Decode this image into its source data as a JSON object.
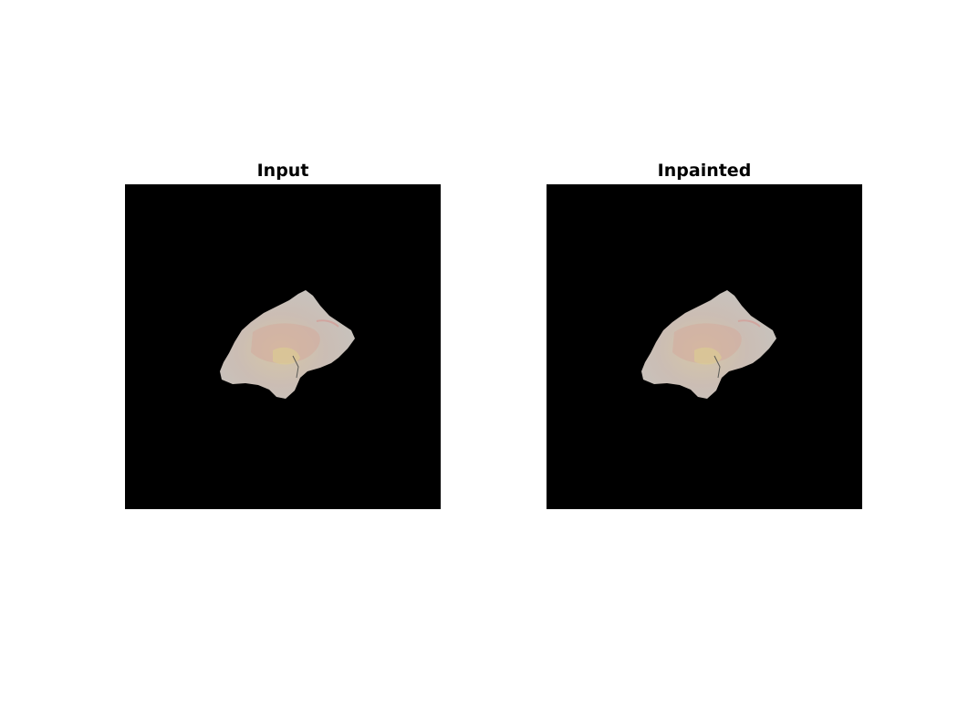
{
  "panels": [
    {
      "title": "Input"
    },
    {
      "title": "Inpainted"
    }
  ],
  "colors": {
    "background": "#ffffff",
    "image_background": "#000000",
    "fragment_base": "#c9c4bc",
    "fragment_tint": "#d8b0a2",
    "fragment_highlight": "#dcc99a"
  }
}
